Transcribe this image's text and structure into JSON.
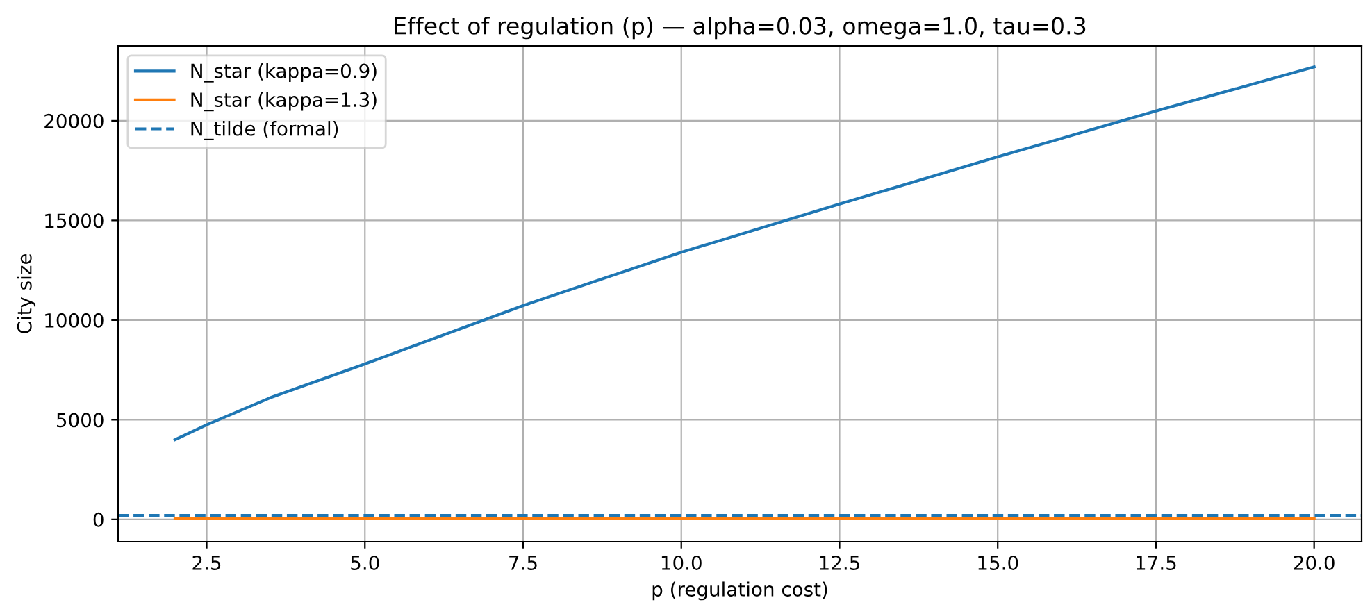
{
  "chart_data": {
    "type": "line",
    "title": "Effect of regulation (p) — alpha=0.03, omega=1.0, tau=0.3",
    "xlabel": "p (regulation cost)",
    "ylabel": "City size",
    "x": [
      2,
      2.5,
      3.5,
      5,
      7.5,
      10,
      12.5,
      15,
      17.5,
      20
    ],
    "series": [
      {
        "name": "N_star (kappa=0.9)",
        "color": "#1f77b4",
        "values": [
          4000,
          4750,
          6100,
          7800,
          10730,
          13400,
          15820,
          18190,
          20490,
          22700
        ]
      },
      {
        "name": "N_star (kappa=1.3)",
        "color": "#ff7f0e",
        "values": [
          30,
          30,
          30,
          30,
          30,
          30,
          30,
          30,
          30,
          30
        ]
      }
    ],
    "ref_lines": [
      {
        "axis": "y",
        "value": 200,
        "label": "N_tilde (formal)",
        "color": "#1f77b4",
        "line_style": "dashed"
      }
    ],
    "xlim": [
      1.1,
      20.75
    ],
    "ylim": [
      -1120,
      23760
    ],
    "xticks": [
      2.5,
      {
        "value": 5,
        "label": "5.0"
      },
      7.5,
      {
        "value": 10,
        "label": "10.0"
      },
      12.5,
      {
        "value": 15,
        "label": "15.0"
      },
      17.5,
      {
        "value": 20,
        "label": "20.0"
      }
    ],
    "yticks": [
      0,
      5000,
      10000,
      15000,
      20000
    ],
    "grid": true,
    "legend": "top left",
    "line_style": "solid",
    "marker": "none"
  }
}
